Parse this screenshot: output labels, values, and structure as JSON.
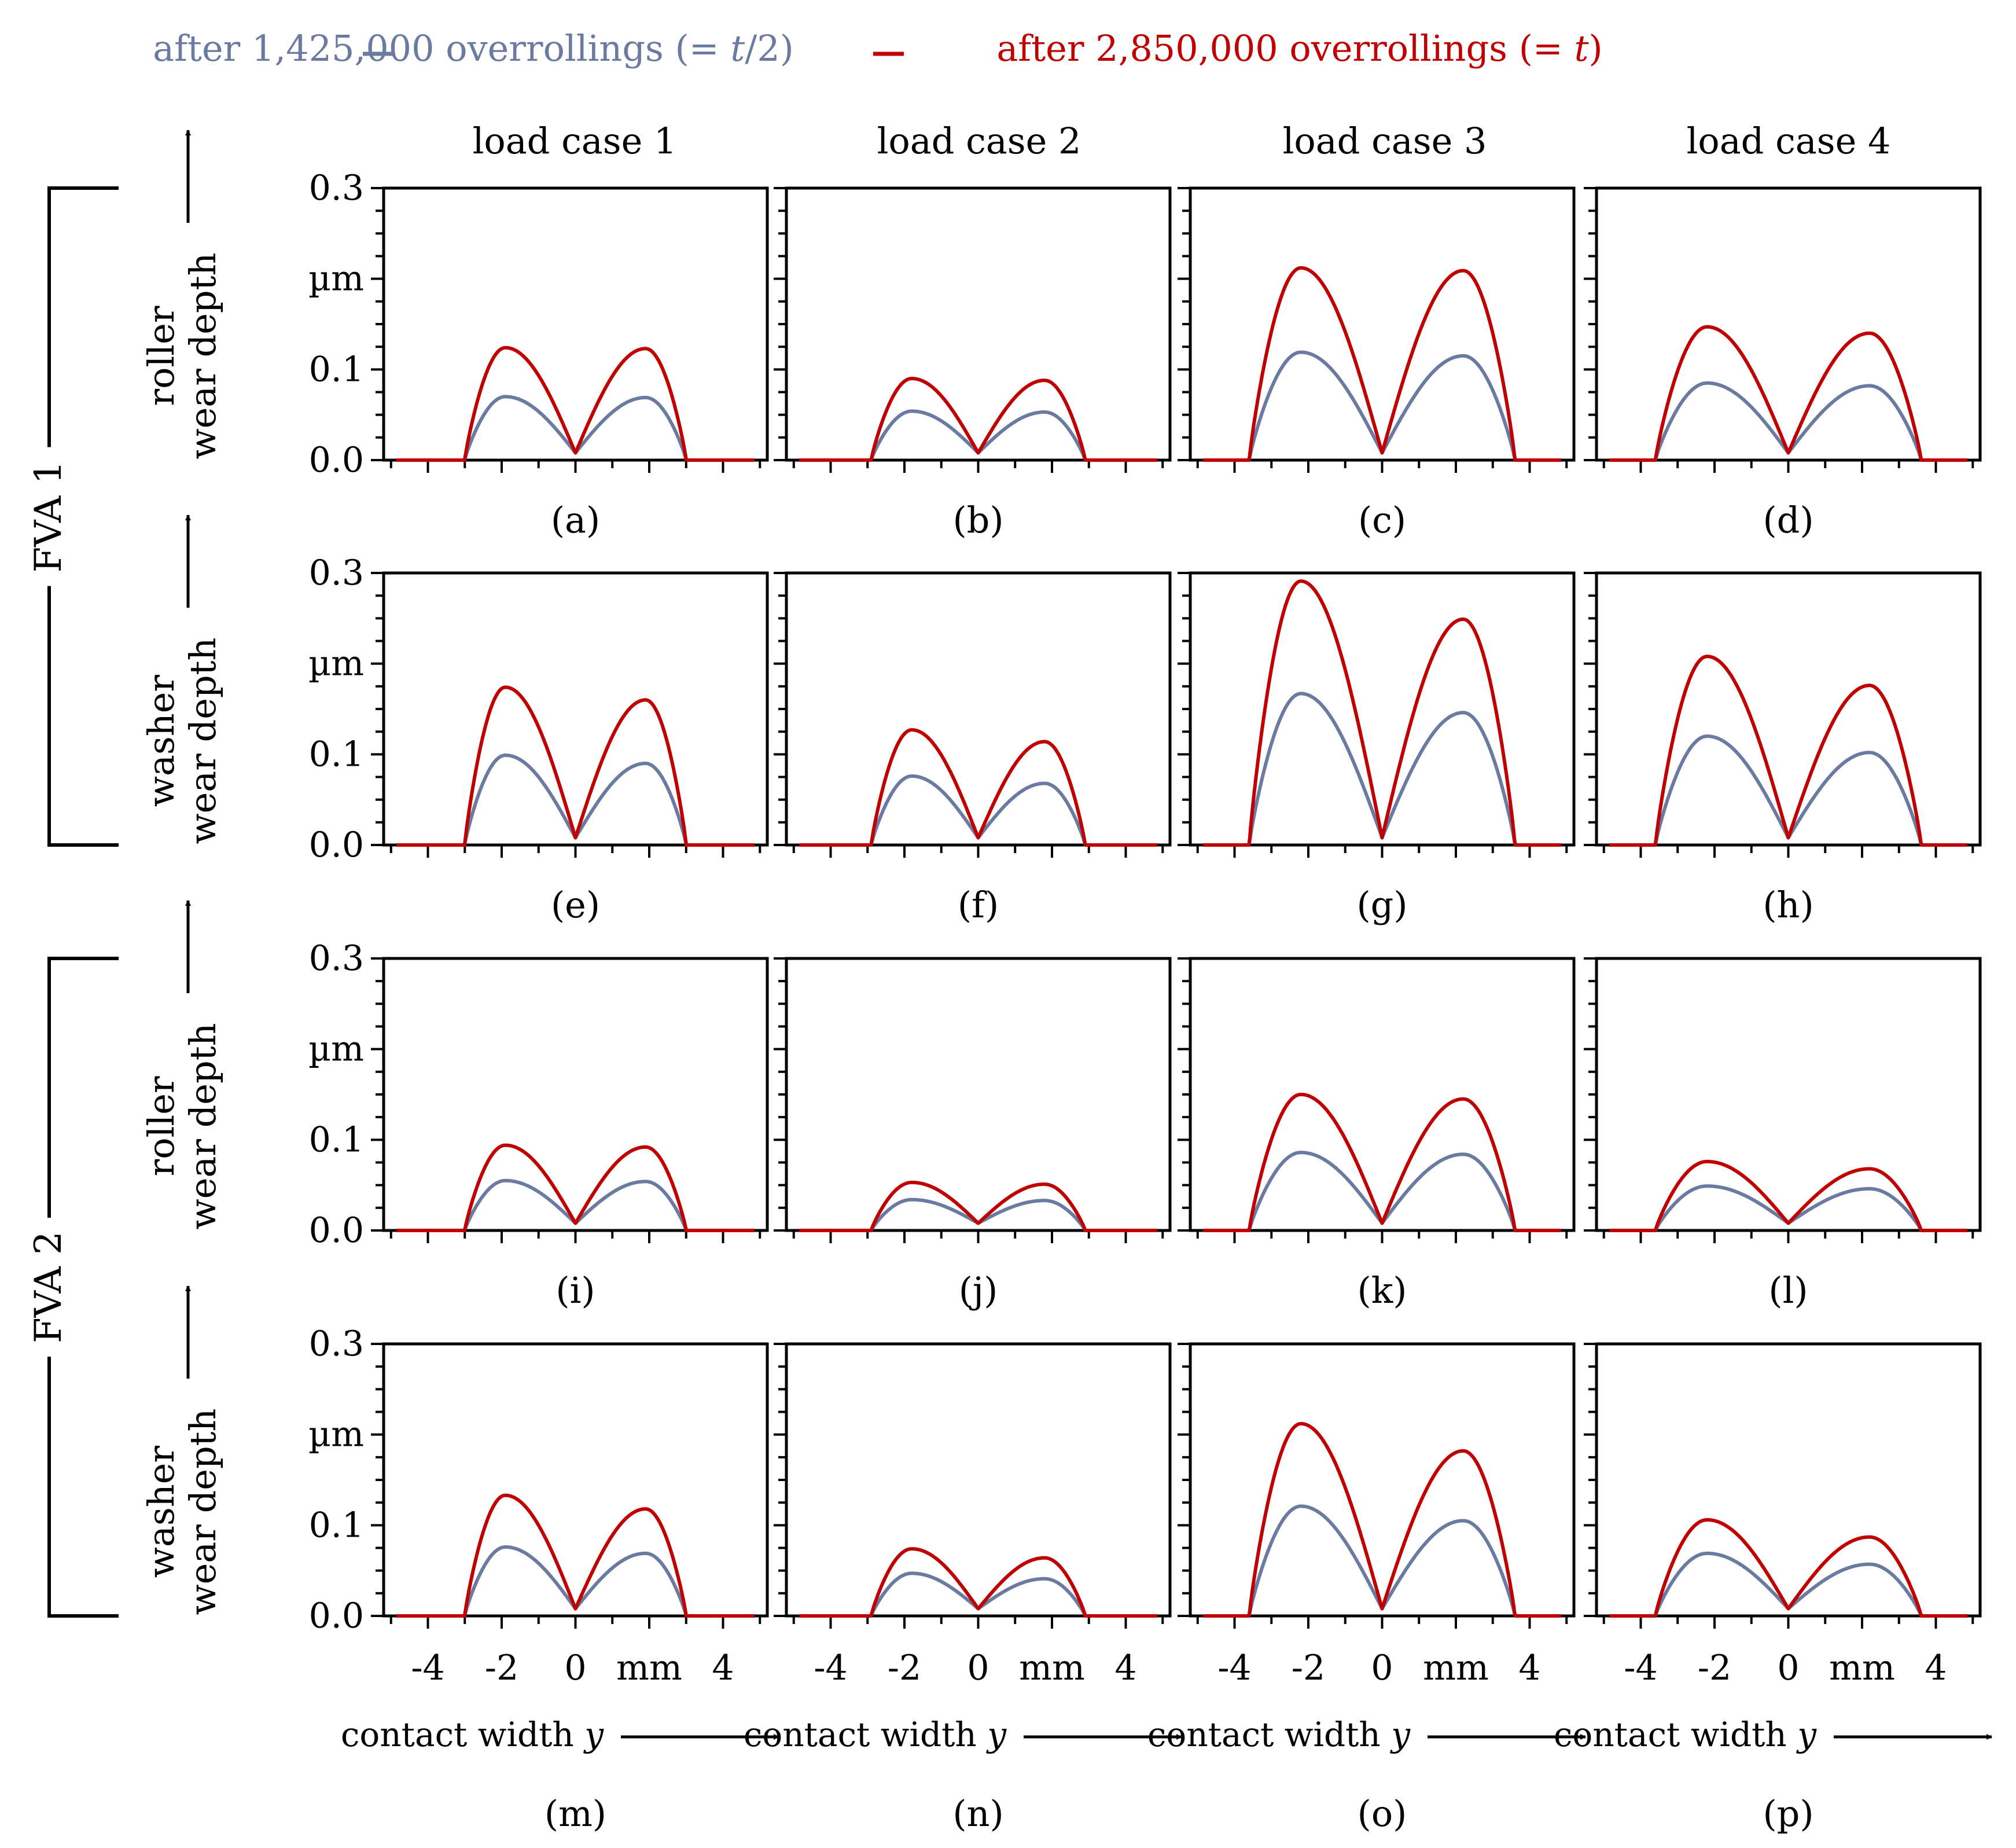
{
  "colors": {
    "half": "#6B7AA1",
    "full": "#C00000",
    "axis": "#000000"
  },
  "legend": [
    {
      "series": "half",
      "prefix": "after 1,425,000 overrollings (= ",
      "var": "t",
      "suffix": "/2)"
    },
    {
      "series": "full",
      "prefix": "after 2,850,000 overrollings (= ",
      "var": "t",
      "suffix": ")"
    }
  ],
  "columns": [
    "load case 1",
    "load case 2",
    "load case 3",
    "load case 4"
  ],
  "groups": [
    {
      "label": "FVA 1",
      "rows": [
        0,
        1
      ]
    },
    {
      "label": "FVA 2",
      "rows": [
        2,
        3
      ]
    }
  ],
  "rows": [
    {
      "lines": [
        "roller",
        "wear depth"
      ]
    },
    {
      "lines": [
        "washer",
        "wear depth"
      ]
    },
    {
      "lines": [
        "roller",
        "wear depth"
      ]
    },
    {
      "lines": [
        "washer",
        "wear depth"
      ]
    }
  ],
  "y_tick_labels": [
    "0.0",
    "0.1",
    "µm",
    "0.3"
  ],
  "x_tick_labels": [
    "-4",
    "-2",
    "0",
    "mm",
    "4"
  ],
  "x_label": {
    "text": "contact width ",
    "var": "y"
  },
  "chart_data": {
    "type": "line",
    "xlabel": "contact width y (mm)",
    "ylabel": "wear depth (µm)",
    "xlim": [
      -5.2,
      5.2
    ],
    "ylim": [
      0,
      0.3
    ],
    "y_ticks": [
      0,
      0.1,
      0.2,
      0.3
    ],
    "x_ticks": [
      -4,
      -2,
      0,
      2,
      4
    ],
    "center_value": 0.008,
    "series_names": [
      "after 1,425,000 overrollings (= t/2)",
      "after 2,850,000 overrollings (= t)"
    ],
    "panels": [
      {
        "id": "(a)",
        "row": 0,
        "col": 0,
        "extent": 3.0,
        "half_peaks": [
          0.07,
          0.069
        ],
        "full_peaks": [
          0.124,
          0.123
        ],
        "peak_x": 1.9
      },
      {
        "id": "(b)",
        "row": 0,
        "col": 1,
        "extent": 2.9,
        "half_peaks": [
          0.054,
          0.053
        ],
        "full_peaks": [
          0.09,
          0.088
        ],
        "peak_x": 1.8
      },
      {
        "id": "(c)",
        "row": 0,
        "col": 2,
        "extent": 3.6,
        "half_peaks": [
          0.119,
          0.115
        ],
        "full_peaks": [
          0.212,
          0.209
        ],
        "peak_x": 2.2
      },
      {
        "id": "(d)",
        "row": 0,
        "col": 3,
        "extent": 3.6,
        "half_peaks": [
          0.085,
          0.082
        ],
        "full_peaks": [
          0.147,
          0.14
        ],
        "peak_x": 2.2
      },
      {
        "id": "(e)",
        "row": 1,
        "col": 0,
        "extent": 3.0,
        "half_peaks": [
          0.099,
          0.09
        ],
        "full_peaks": [
          0.174,
          0.16
        ],
        "peak_x": 1.9
      },
      {
        "id": "(f)",
        "row": 1,
        "col": 1,
        "extent": 2.9,
        "half_peaks": [
          0.076,
          0.068
        ],
        "full_peaks": [
          0.127,
          0.114
        ],
        "peak_x": 1.8
      },
      {
        "id": "(g)",
        "row": 1,
        "col": 2,
        "extent": 3.6,
        "half_peaks": [
          0.167,
          0.146
        ],
        "full_peaks": [
          0.291,
          0.249
        ],
        "peak_x": 2.2
      },
      {
        "id": "(h)",
        "row": 1,
        "col": 3,
        "extent": 3.6,
        "half_peaks": [
          0.12,
          0.102
        ],
        "full_peaks": [
          0.208,
          0.176
        ],
        "peak_x": 2.2
      },
      {
        "id": "(i)",
        "row": 2,
        "col": 0,
        "extent": 3.0,
        "half_peaks": [
          0.055,
          0.054
        ],
        "full_peaks": [
          0.094,
          0.092
        ],
        "peak_x": 1.9
      },
      {
        "id": "(j)",
        "row": 2,
        "col": 1,
        "extent": 2.9,
        "half_peaks": [
          0.034,
          0.033
        ],
        "full_peaks": [
          0.053,
          0.051
        ],
        "peak_x": 1.8
      },
      {
        "id": "(k)",
        "row": 2,
        "col": 2,
        "extent": 3.6,
        "half_peaks": [
          0.086,
          0.084
        ],
        "full_peaks": [
          0.15,
          0.145
        ],
        "peak_x": 2.2
      },
      {
        "id": "(l)",
        "row": 2,
        "col": 3,
        "extent": 3.6,
        "half_peaks": [
          0.049,
          0.046
        ],
        "full_peaks": [
          0.076,
          0.068
        ],
        "peak_x": 2.2
      },
      {
        "id": "(m)",
        "row": 3,
        "col": 0,
        "extent": 3.0,
        "half_peaks": [
          0.076,
          0.069
        ],
        "full_peaks": [
          0.133,
          0.118
        ],
        "peak_x": 1.9
      },
      {
        "id": "(n)",
        "row": 3,
        "col": 1,
        "extent": 2.9,
        "half_peaks": [
          0.047,
          0.041
        ],
        "full_peaks": [
          0.074,
          0.064
        ],
        "peak_x": 1.8
      },
      {
        "id": "(o)",
        "row": 3,
        "col": 2,
        "extent": 3.6,
        "half_peaks": [
          0.121,
          0.105
        ],
        "full_peaks": [
          0.212,
          0.182
        ],
        "peak_x": 2.2
      },
      {
        "id": "(p)",
        "row": 3,
        "col": 3,
        "extent": 3.6,
        "half_peaks": [
          0.069,
          0.057
        ],
        "full_peaks": [
          0.106,
          0.087
        ],
        "peak_x": 2.2
      }
    ]
  }
}
